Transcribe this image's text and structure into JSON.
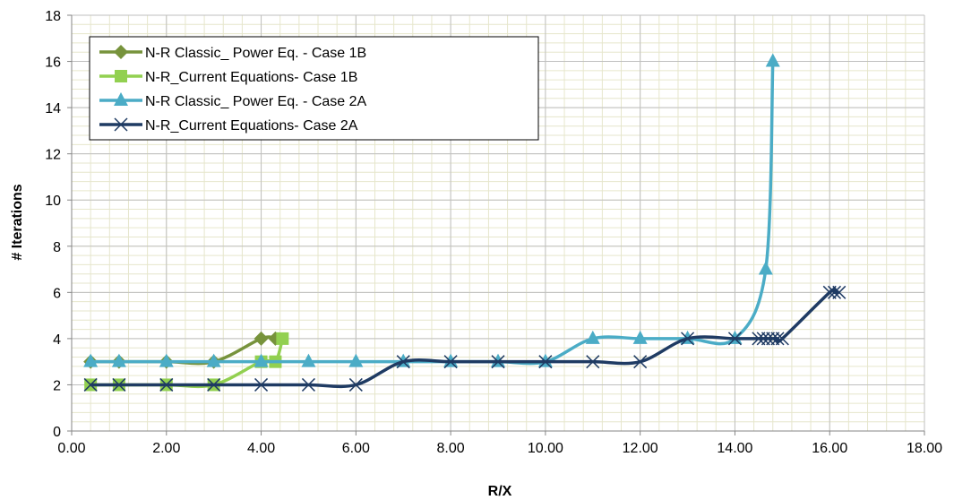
{
  "chart_data": {
    "type": "line",
    "title": "",
    "xlabel": "R/X",
    "ylabel": "# Iterations",
    "xlim": [
      0,
      18
    ],
    "ylim": [
      0,
      18
    ],
    "x_ticks": [
      0,
      2,
      4,
      6,
      8,
      10,
      12,
      14,
      16,
      18
    ],
    "x_tick_labels": [
      "0.00",
      "2.00",
      "4.00",
      "6.00",
      "8.00",
      "10.00",
      "12.00",
      "14.00",
      "16.00",
      "18.00"
    ],
    "y_ticks": [
      0,
      2,
      4,
      6,
      8,
      10,
      12,
      14,
      16,
      18
    ],
    "y_tick_labels": [
      "0",
      "2",
      "4",
      "6",
      "8",
      "10",
      "12",
      "14",
      "16",
      "18"
    ],
    "grid": true,
    "minor_grid": true,
    "legend_position": "top-left",
    "series": [
      {
        "name": "N-R Classic_ Power Eq. - Case 1B",
        "color": "#77933C",
        "marker": "diamond",
        "x": [
          0.4,
          1,
          2,
          3,
          4,
          4.3
        ],
        "y": [
          3,
          3,
          3,
          3,
          4,
          4
        ]
      },
      {
        "name": "N-R_Current Equations- Case 1B",
        "color": "#92D050",
        "marker": "square",
        "x": [
          0.4,
          1,
          2,
          3,
          4,
          4.3,
          4.45
        ],
        "y": [
          2,
          2,
          2,
          2,
          3,
          3,
          4
        ]
      },
      {
        "name": "N-R Classic_ Power Eq. - Case 2A",
        "color": "#4BACC6",
        "marker": "triangle",
        "x": [
          0.4,
          1,
          2,
          3,
          4,
          5,
          6,
          7,
          8,
          9,
          10,
          11,
          12,
          13,
          14,
          14.65,
          14.8
        ],
        "y": [
          3,
          3,
          3,
          3,
          3,
          3,
          3,
          3,
          3,
          3,
          3,
          4,
          4,
          4,
          4,
          7,
          16
        ]
      },
      {
        "name": "N-R_Current Equations- Case 2A",
        "color": "#1F3B63",
        "marker": "x",
        "x": [
          0.4,
          1,
          2,
          3,
          4,
          5,
          6,
          7,
          8,
          9,
          10,
          11,
          12,
          13,
          14,
          14.5,
          14.6,
          14.7,
          14.8,
          14.9,
          15,
          16,
          16.1,
          16.2
        ],
        "y": [
          2,
          2,
          2,
          2,
          2,
          2,
          2,
          3,
          3,
          3,
          3,
          3,
          3,
          4,
          4,
          4,
          4,
          4,
          4,
          4,
          4,
          6,
          6,
          6
        ]
      }
    ]
  }
}
